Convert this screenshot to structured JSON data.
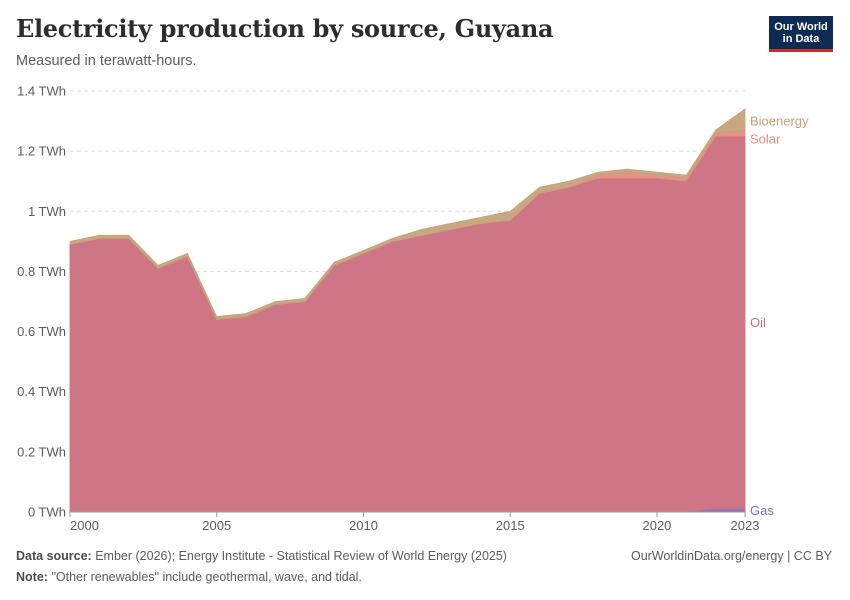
{
  "header": {
    "title": "Electricity production by source, Guyana",
    "subtitle": "Measured in terawatt-hours.",
    "logo_line1": "Our World",
    "logo_line2": "in Data"
  },
  "footer": {
    "source_label": "Data source:",
    "source_text": "Ember (2026); Energy Institute - Statistical Review of World Energy (2025)",
    "note_label": "Note:",
    "note_text": "\"Other renewables\" include geothermal, wave, and tidal.",
    "credit": "OurWorldinData.org/energy | CC BY"
  },
  "colors": {
    "Gas": "#8a6bbf",
    "Oil": "#cc6f80",
    "Solar": "#e38d80",
    "Bioenergy": "#c4a37a",
    "grid": "#dddddd",
    "axis_text": "#5b5b5b"
  },
  "chart_data": {
    "type": "area",
    "stacked": true,
    "x": [
      2000,
      2001,
      2002,
      2003,
      2004,
      2005,
      2006,
      2007,
      2008,
      2009,
      2010,
      2011,
      2012,
      2013,
      2014,
      2015,
      2016,
      2017,
      2018,
      2019,
      2020,
      2021,
      2022,
      2023
    ],
    "series": [
      {
        "name": "Gas",
        "values": [
          0,
          0,
          0,
          0,
          0,
          0,
          0,
          0,
          0,
          0,
          0,
          0,
          0,
          0,
          0,
          0,
          0,
          0,
          0,
          0,
          0,
          0,
          0.01,
          0.01
        ]
      },
      {
        "name": "Oil",
        "values": [
          0.89,
          0.91,
          0.91,
          0.81,
          0.85,
          0.64,
          0.65,
          0.69,
          0.7,
          0.82,
          0.86,
          0.9,
          0.92,
          0.94,
          0.96,
          0.97,
          1.06,
          1.08,
          1.11,
          1.11,
          1.11,
          1.1,
          1.24,
          1.24
        ]
      },
      {
        "name": "Solar",
        "values": [
          0,
          0,
          0,
          0,
          0,
          0,
          0,
          0,
          0,
          0,
          0,
          0,
          0,
          0,
          0,
          0,
          0,
          0,
          0.01,
          0.02,
          0.01,
          0.01,
          0.01,
          0.02
        ]
      },
      {
        "name": "Bioenergy",
        "values": [
          0.01,
          0.01,
          0.01,
          0.01,
          0.01,
          0.01,
          0.01,
          0.01,
          0.01,
          0.01,
          0.01,
          0.01,
          0.02,
          0.02,
          0.02,
          0.03,
          0.02,
          0.02,
          0.01,
          0.01,
          0.01,
          0.01,
          0.01,
          0.07
        ]
      }
    ],
    "y_ticks": [
      {
        "value": 0,
        "label": "0 TWh"
      },
      {
        "value": 0.2,
        "label": "0.2 TWh"
      },
      {
        "value": 0.4,
        "label": "0.4 TWh"
      },
      {
        "value": 0.6,
        "label": "0.6 TWh"
      },
      {
        "value": 0.8,
        "label": "0.8 TWh"
      },
      {
        "value": 1.0,
        "label": "1 TWh"
      },
      {
        "value": 1.2,
        "label": "1.2 TWh"
      },
      {
        "value": 1.4,
        "label": "1.4 TWh"
      }
    ],
    "x_ticks": [
      {
        "value": 2000,
        "label": "2000"
      },
      {
        "value": 2005,
        "label": "2005"
      },
      {
        "value": 2010,
        "label": "2010"
      },
      {
        "value": 2015,
        "label": "2015"
      },
      {
        "value": 2020,
        "label": "2020"
      },
      {
        "value": 2023,
        "label": "2023"
      }
    ],
    "xlim": [
      2000,
      2023
    ],
    "ylim": [
      0,
      1.4
    ],
    "grid": "horizontal dashed",
    "legend": "inline labels at right end"
  }
}
